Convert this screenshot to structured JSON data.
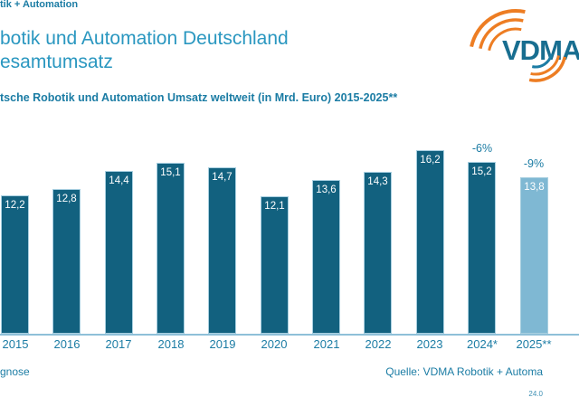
{
  "slide": {
    "header_small": "tik + Automation",
    "title_line1": "botik und Automation Deutschland",
    "title_line2": "esamtumsatz",
    "footer_left": "gnose",
    "footer_right": "Quelle: VDMA Robotik + Automa",
    "date_stamp": "24.0",
    "logo_text": "VDMA"
  },
  "colors": {
    "teal_text": "#1b7ca4",
    "title_blue": "#2a97c0",
    "bar": "#12617f",
    "bar_forecast": "#7fb8d3",
    "axis": "#8fc0d8",
    "logo_orange": "#ed7d23",
    "logo_petrol": "#186e90"
  },
  "chart_data": {
    "type": "bar",
    "title": "tsche Robotik und Automation Umsatz weltweit (in Mrd. Euro) 2015-2025**",
    "unit": "Mrd. Euro",
    "categories": [
      "2015",
      "2016",
      "2017",
      "2018",
      "2019",
      "2020",
      "2021",
      "2022",
      "2023",
      "2024*",
      "2025**"
    ],
    "values": [
      12.2,
      12.8,
      14.4,
      15.1,
      14.7,
      12.1,
      13.6,
      14.3,
      16.2,
      15.2,
      13.8
    ],
    "value_labels": [
      "12,2",
      "12,8",
      "14,4",
      "15,1",
      "14,7",
      "12,1",
      "13,6",
      "14,3",
      "16,2",
      "15,2",
      "13,8"
    ],
    "forecast_indices": [
      10
    ],
    "annotations": [
      {
        "category": "2024*",
        "label": "-6%"
      },
      {
        "category": "2025**",
        "label": "-9%"
      }
    ],
    "ylim": [
      0,
      17
    ],
    "grid": false,
    "legend": false
  }
}
